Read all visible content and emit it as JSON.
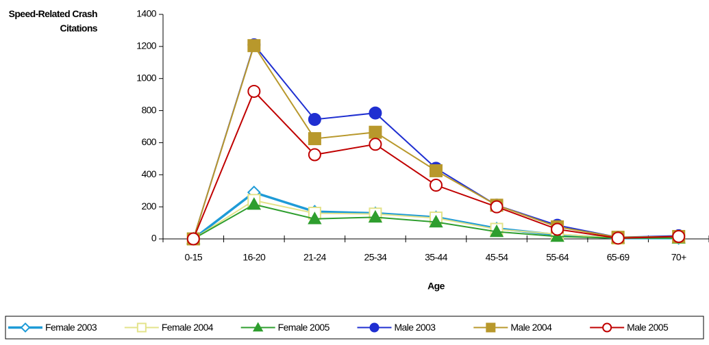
{
  "chart_data": {
    "type": "line",
    "y_label": "Speed-Related Crash Citations",
    "x_label": "Age",
    "categories": [
      "0-15",
      "16-20",
      "21-24",
      "25-34",
      "35-44",
      "45-54",
      "55-64",
      "65-69",
      "70+"
    ],
    "ylim": [
      0,
      1400
    ],
    "yticks": [
      0,
      200,
      400,
      600,
      800,
      1000,
      1200,
      1400
    ],
    "legend": "bottom",
    "series": [
      {
        "name": "Female 2003",
        "color": "#1e9bd7",
        "marker": "diamond",
        "filled": false,
        "width": 3.5,
        "values": [
          0,
          290,
          170,
          160,
          135,
          65,
          25,
          5,
          5
        ]
      },
      {
        "name": "Female 2004",
        "color": "#e3e38a",
        "marker": "square",
        "filled": false,
        "width": 2,
        "values": [
          0,
          240,
          160,
          155,
          130,
          60,
          30,
          5,
          10
        ]
      },
      {
        "name": "Female 2005",
        "color": "#2e9e2e",
        "marker": "triangle",
        "filled": true,
        "width": 2,
        "values": [
          0,
          215,
          125,
          135,
          105,
          45,
          15,
          5,
          5
        ]
      },
      {
        "name": "Male 2003",
        "color": "#1f2fd1",
        "marker": "circle",
        "filled": true,
        "width": 2,
        "values": [
          0,
          1210,
          745,
          785,
          440,
          210,
          85,
          10,
          20
        ]
      },
      {
        "name": "Male 2004",
        "color": "#b8982c",
        "marker": "square",
        "filled": true,
        "width": 2,
        "values": [
          0,
          1205,
          625,
          665,
          425,
          210,
          75,
          10,
          15
        ]
      },
      {
        "name": "Male 2005",
        "color": "#c00000",
        "marker": "circle",
        "filled": false,
        "width": 2,
        "values": [
          0,
          920,
          525,
          590,
          335,
          200,
          60,
          5,
          15
        ]
      }
    ]
  }
}
